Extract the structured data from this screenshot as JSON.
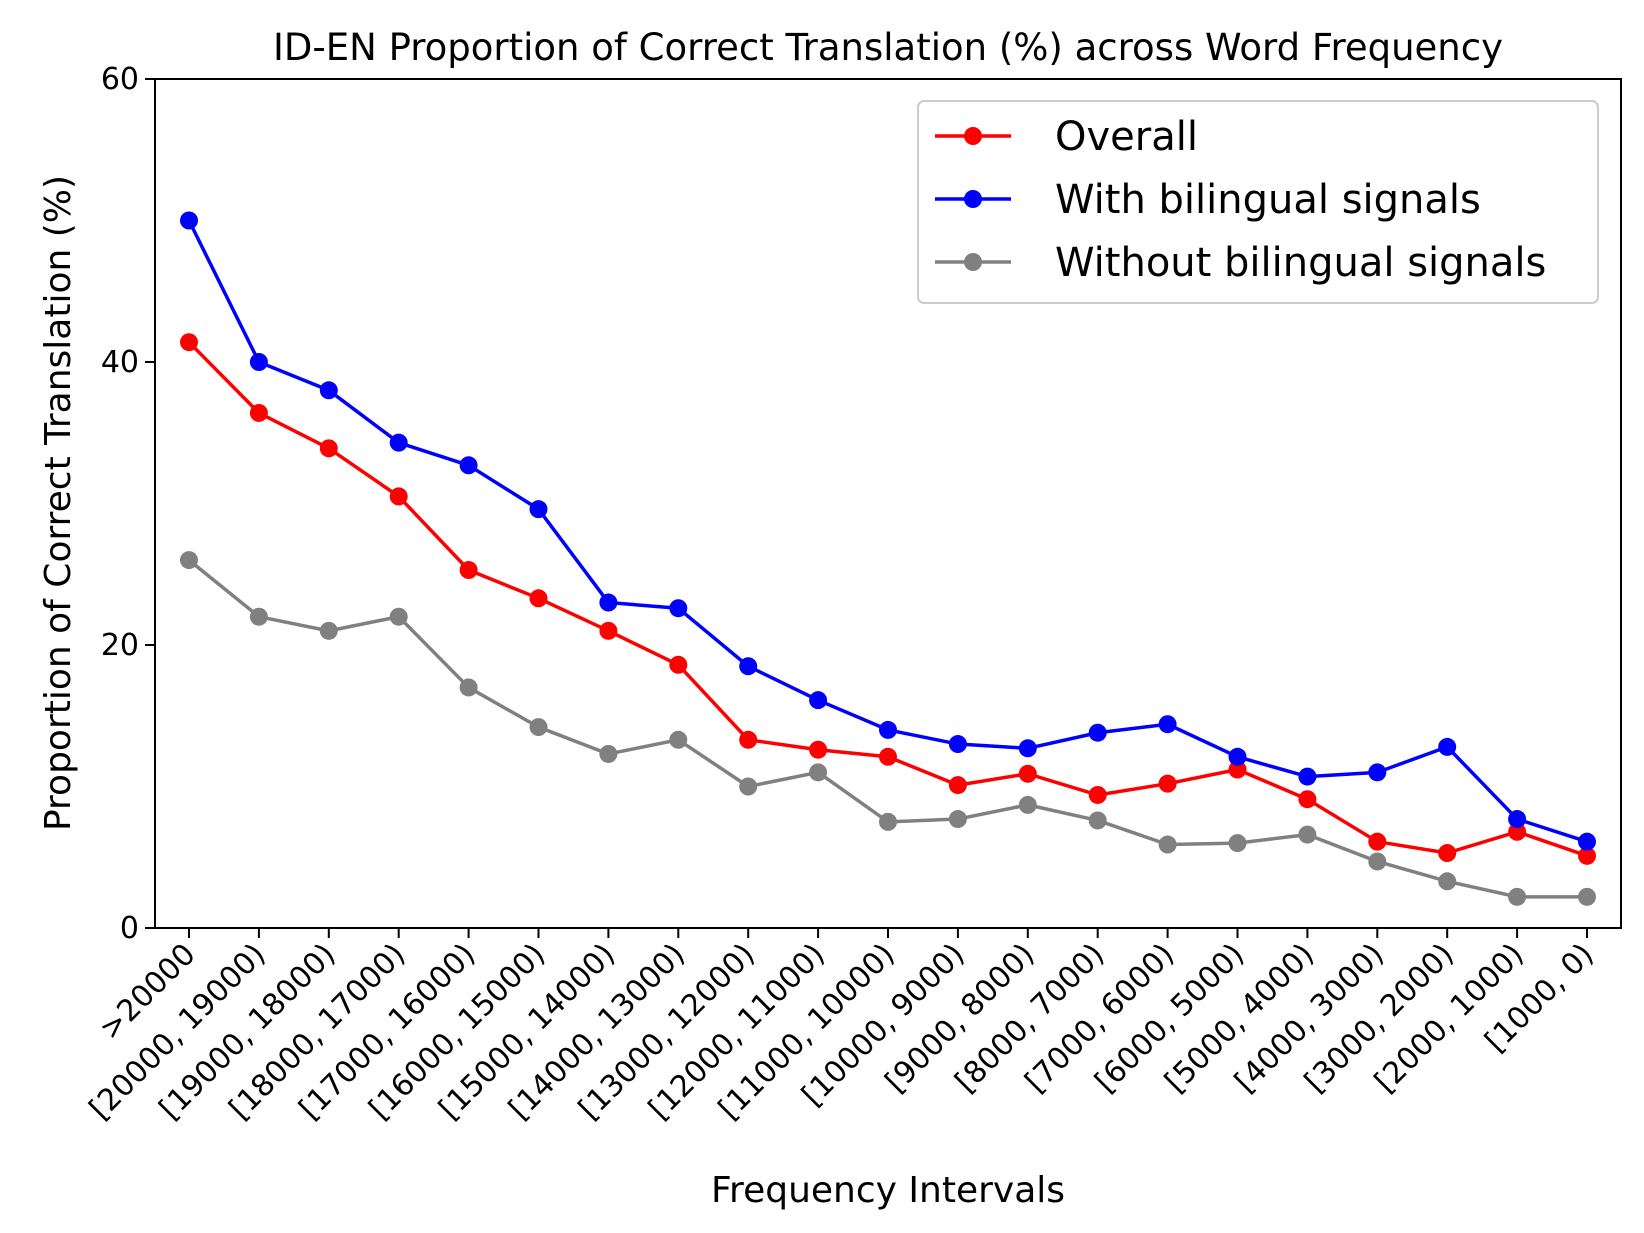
{
  "chart_data": {
    "type": "line",
    "title": "ID-EN Proportion of Correct Translation (%) across Word Frequency",
    "xlabel": "Frequency Intervals",
    "ylabel": "Proportion of Correct Translation (%)",
    "ylim": [
      0,
      60
    ],
    "yticks": [
      "0",
      "20",
      "40",
      "60"
    ],
    "grid": false,
    "legend_position": "top-right",
    "categories": [
      ">20000",
      "[20000, 19000)",
      "[19000, 18000)",
      "[18000, 17000)",
      "[17000, 16000)",
      "[16000, 15000)",
      "[15000, 14000)",
      "[14000, 13000)",
      "[13000, 12000)",
      "[12000, 11000)",
      "[11000, 10000)",
      "[10000, 9000)",
      "[9000, 8000)",
      "[8000, 7000)",
      "[7000, 6000)",
      "[6000, 5000)",
      "[5000, 4000)",
      "[4000, 3000)",
      "[3000, 2000)",
      "[2000, 1000)",
      "[1000, 0)"
    ],
    "series": [
      {
        "name": "Overall",
        "color": "#ff0000",
        "values": [
          41.4,
          36.4,
          33.9,
          30.5,
          25.3,
          23.3,
          21.0,
          18.6,
          13.3,
          12.6,
          12.1,
          10.1,
          10.9,
          9.4,
          10.2,
          11.2,
          9.1,
          6.1,
          5.3,
          6.8,
          5.1
        ]
      },
      {
        "name": "With bilingual signals",
        "color": "#0000ff",
        "values": [
          50.0,
          40.0,
          38.0,
          34.3,
          32.7,
          29.6,
          23.0,
          22.6,
          18.5,
          16.1,
          14.0,
          13.0,
          12.7,
          13.8,
          14.4,
          12.1,
          10.7,
          11.0,
          12.8,
          7.7,
          6.1
        ]
      },
      {
        "name": "Without bilingual signals",
        "color": "#808080",
        "values": [
          26.0,
          22.0,
          21.0,
          22.0,
          17.0,
          14.2,
          12.3,
          13.3,
          10.0,
          11.0,
          7.5,
          7.7,
          8.7,
          7.6,
          5.9,
          6.0,
          6.6,
          4.7,
          3.3,
          2.2,
          2.2
        ]
      }
    ]
  }
}
